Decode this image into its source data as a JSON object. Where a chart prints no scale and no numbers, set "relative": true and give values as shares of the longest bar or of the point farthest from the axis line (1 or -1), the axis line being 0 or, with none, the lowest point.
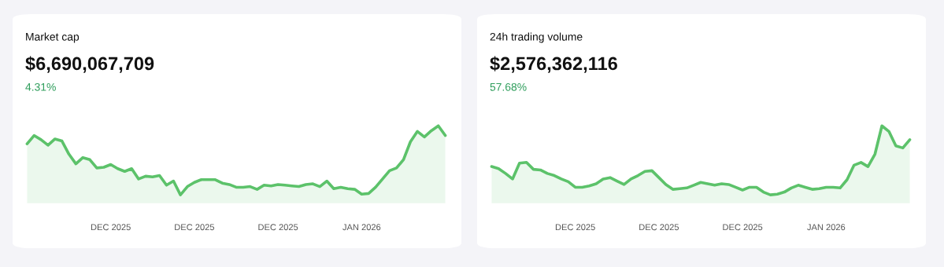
{
  "chart_data": [
    {
      "type": "area",
      "title": "Market cap",
      "subtitle": "$6,690,067,709",
      "annotations": [
        "4.31%"
      ],
      "relative": true,
      "color": "#5cc26a",
      "categories": [
        null,
        null,
        null,
        null,
        null,
        null,
        null,
        null,
        null,
        null,
        null,
        null,
        "DEC 2025",
        null,
        null,
        null,
        null,
        null,
        null,
        null,
        null,
        null,
        null,
        null,
        "DEC 2025",
        null,
        null,
        null,
        null,
        null,
        null,
        null,
        null,
        null,
        null,
        null,
        "DEC 2025",
        null,
        null,
        null,
        null,
        null,
        null,
        null,
        null,
        null,
        null,
        null,
        "JAN 2026",
        null,
        null,
        null,
        null,
        null,
        null,
        null,
        null,
        null,
        null,
        null,
        null
      ],
      "values": [
        0.74,
        0.86,
        0.8,
        0.72,
        0.81,
        0.78,
        0.59,
        0.45,
        0.54,
        0.51,
        0.39,
        0.4,
        0.44,
        0.38,
        0.34,
        0.38,
        0.23,
        0.27,
        0.26,
        0.28,
        0.14,
        0.2,
        0,
        0.12,
        0.18,
        0.22,
        0.22,
        0.22,
        0.17,
        0.15,
        0.11,
        0.11,
        0.12,
        0.08,
        0.14,
        0.13,
        0.15,
        0.14,
        0.13,
        0.12,
        0.15,
        0.16,
        0.12,
        0.2,
        0.09,
        0.11,
        0.09,
        0.08,
        0.01,
        0.02,
        0.11,
        0.23,
        0.35,
        0.39,
        0.51,
        0.77,
        0.92,
        0.84,
        0.93,
        1,
        0.86
      ]
    },
    {
      "type": "area",
      "title": "24h trading volume",
      "subtitle": "$2,576,362,116",
      "annotations": [
        "57.68%"
      ],
      "relative": true,
      "color": "#5cc26a",
      "categories": [
        null,
        null,
        null,
        null,
        null,
        null,
        null,
        null,
        null,
        null,
        null,
        null,
        "DEC 2025",
        null,
        null,
        null,
        null,
        null,
        null,
        null,
        null,
        null,
        null,
        null,
        "DEC 2025",
        null,
        null,
        null,
        null,
        null,
        null,
        null,
        null,
        null,
        null,
        null,
        "DEC 2025",
        null,
        null,
        null,
        null,
        null,
        null,
        null,
        null,
        null,
        null,
        null,
        "JAN 2026",
        null,
        null,
        null,
        null,
        null,
        null,
        null,
        null,
        null,
        null,
        null,
        null
      ],
      "values": [
        0.41,
        0.38,
        0.31,
        0.23,
        0.46,
        0.47,
        0.37,
        0.36,
        0.31,
        0.28,
        0.23,
        0.19,
        0.11,
        0.11,
        0.13,
        0.16,
        0.23,
        0.25,
        0.2,
        0.15,
        0.23,
        0.28,
        0.34,
        0.35,
        0.25,
        0.15,
        0.08,
        0.09,
        0.1,
        0.14,
        0.18,
        0.16,
        0.14,
        0.16,
        0.15,
        0.11,
        0.07,
        0.11,
        0.11,
        0.04,
        0,
        0.01,
        0.04,
        0.1,
        0.14,
        0.11,
        0.08,
        0.09,
        0.11,
        0.11,
        0.1,
        0.22,
        0.43,
        0.47,
        0.41,
        0.59,
        1,
        0.92,
        0.71,
        0.68,
        0.8
      ]
    }
  ]
}
